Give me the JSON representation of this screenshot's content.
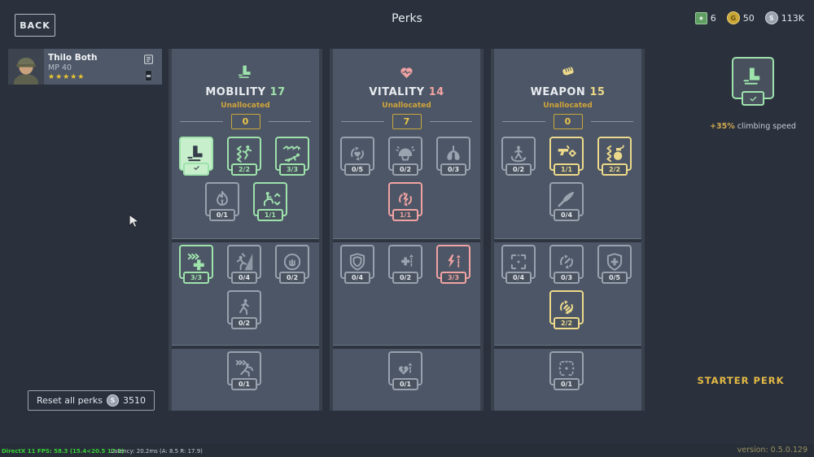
{
  "header": {
    "back_label": "BACK",
    "title": "Perks",
    "currencies": [
      {
        "icon": "event-card-icon",
        "symbol": "★",
        "value": "6"
      },
      {
        "icon": "gold-coin-icon",
        "symbol": "G",
        "value": "50"
      },
      {
        "icon": "silver-coin-icon",
        "symbol": "S",
        "value": "113K"
      }
    ]
  },
  "player": {
    "name": "Thilo Both",
    "weapon": "MP 40",
    "stars": "★★★★★",
    "icons": [
      "roster-list-icon",
      "magazine-icon"
    ]
  },
  "columns": [
    {
      "id": "mobility",
      "title": "MOBILITY",
      "points": "17",
      "accent": "#9ee2ac",
      "fill": "#c8efcc",
      "header_icon": "climbing-boot-icon",
      "unallocated_label": "Unallocated",
      "unallocated": "0",
      "sections": [
        {
          "rows": [
            [
              {
                "icon": "climbing-boot-icon",
                "state": "active",
                "col": 0
              },
              {
                "icon": "jump-chevrons-icon",
                "count": "2/2",
                "state": "maxed",
                "col": 1
              },
              {
                "icon": "crawl-wire-icon",
                "count": "3/3",
                "state": "maxed",
                "col": 2
              }
            ],
            [
              {
                "icon": "flame-figure-icon",
                "count": "0/1",
                "state": "empty",
                "col": 0.54
              },
              {
                "icon": "crouch-toggle-icon",
                "count": "1/1",
                "state": "maxed",
                "col": 1.54
              }
            ]
          ]
        },
        {
          "rows": [
            [
              {
                "icon": "speed-plus-icon",
                "count": "3/3",
                "state": "maxed",
                "col": 0
              },
              {
                "icon": "climb-wall-icon",
                "count": "0/4",
                "state": "empty",
                "col": 1
              },
              {
                "icon": "grip-circle-icon",
                "count": "0/2",
                "state": "empty",
                "col": 2
              }
            ],
            [
              {
                "icon": "sneak-walk-icon",
                "count": "0/2",
                "state": "empty",
                "col": 1
              }
            ]
          ]
        },
        {
          "rows": [
            [
              {
                "icon": "sprint-chevrons-icon",
                "count": "0/1",
                "state": "empty",
                "col": 1
              }
            ]
          ]
        }
      ]
    },
    {
      "id": "vitality",
      "title": "VITALITY",
      "points": "14",
      "accent": "#f1a3a3",
      "fill": "#f7cfcf",
      "header_icon": "heart-pulse-icon",
      "unallocated_label": "Unallocated",
      "unallocated": "7",
      "sections": [
        {
          "rows": [
            [
              {
                "icon": "heart-cycle-icon",
                "count": "0/5",
                "state": "empty",
                "col": 0
              },
              {
                "icon": "helmet-icon",
                "count": "0/2",
                "state": "empty",
                "col": 1
              },
              {
                "icon": "lungs-icon",
                "count": "0/3",
                "state": "empty",
                "col": 2
              }
            ],
            [
              {
                "icon": "bolt-cycle-icon",
                "count": "1/1",
                "state": "maxed",
                "col": 1
              }
            ]
          ]
        },
        {
          "rows": [
            [
              {
                "icon": "shield-icon",
                "count": "0/4",
                "state": "empty",
                "col": 0
              },
              {
                "icon": "health-up-icon",
                "count": "0/2",
                "state": "empty",
                "col": 1
              },
              {
                "icon": "bolt-up-icon",
                "count": "3/3",
                "state": "maxed",
                "col": 2
              }
            ],
            []
          ]
        },
        {
          "rows": [
            [
              {
                "icon": "heart-bolt-up-icon",
                "count": "0/1",
                "state": "empty",
                "col": 1
              }
            ]
          ]
        }
      ]
    },
    {
      "id": "weapon",
      "title": "WEAPON",
      "points": "15",
      "accent": "#ecd98b",
      "fill": "#f5eabc",
      "header_icon": "fist-icon",
      "unallocated_label": "Unallocated",
      "unallocated": "0",
      "sections": [
        {
          "rows": [
            [
              {
                "icon": "spin-person-icon",
                "count": "0/2",
                "state": "empty",
                "col": 0
              },
              {
                "icon": "pistol-diamond-icon",
                "count": "1/1",
                "state": "maxed",
                "col": 1
              },
              {
                "icon": "grenade-chevrons-icon",
                "count": "2/2",
                "state": "maxed",
                "col": 2
              }
            ],
            [
              {
                "icon": "knife-icon",
                "count": "0/4",
                "state": "empty",
                "col": 1
              }
            ]
          ]
        },
        {
          "rows": [
            [
              {
                "icon": "crosshair-icon",
                "count": "0/4",
                "state": "empty",
                "col": 0
              },
              {
                "icon": "bullet-cycle-icon",
                "count": "0/3",
                "state": "empty",
                "col": 1
              },
              {
                "icon": "shield-plus-icon",
                "count": "0/5",
                "state": "empty",
                "col": 2
              }
            ],
            [
              {
                "icon": "bullets-cycle-icon",
                "count": "2/2",
                "state": "maxed",
                "col": 1
              }
            ]
          ]
        },
        {
          "rows": [
            [
              {
                "icon": "crosshair-triangles-icon",
                "count": "0/1",
                "state": "empty",
                "col": 1
              }
            ]
          ]
        }
      ]
    }
  ],
  "right_panel": {
    "icon": "climbing-boot-icon",
    "badge_icon": "check-icon",
    "desc_value": "+35%",
    "desc_text": " climbing speed",
    "starter_label": "STARTER PERK"
  },
  "footer": {
    "reset_label": "Reset all perks",
    "reset_cost": "3510",
    "debug_fps": "DirectX 11 FPS: 58.3 (15.4<20.5 17.2)",
    "debug_latency": "Latency: 20.2ms (A:  8.5 R: 17.9)",
    "version": "version: 0.5.0.129"
  }
}
